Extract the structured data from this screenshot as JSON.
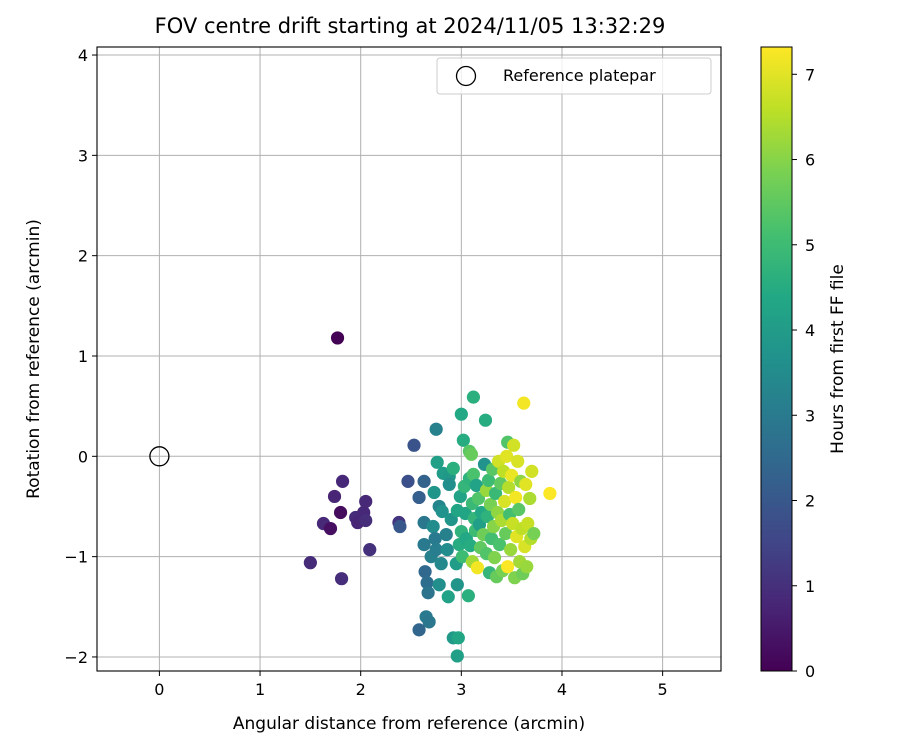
{
  "chart_data": {
    "type": "scatter",
    "title": "FOV centre drift starting at 2024/11/05 13:32:29",
    "xlabel": "Angular distance from reference (arcmin)",
    "ylabel": "Rotation from reference (arcmin)",
    "xlim": [
      -0.62,
      5.58
    ],
    "ylim": [
      -2.14,
      4.08
    ],
    "xticks": [
      0,
      1,
      2,
      3,
      4,
      5
    ],
    "yticks": [
      -2,
      -1,
      0,
      1,
      2,
      3,
      4
    ],
    "grid": true,
    "legend": {
      "label": "Reference platepar",
      "placement": "top-right"
    },
    "reference_point": {
      "x": 0,
      "y": 0
    },
    "colorbar": {
      "label": "Hours from first FF file",
      "colormap": "viridis",
      "range": [
        0,
        7.32
      ],
      "ticks": [
        0,
        1,
        2,
        3,
        4,
        5,
        6,
        7
      ]
    },
    "points": [
      {
        "x": 1.77,
        "y": 1.18,
        "h": 0.02
      },
      {
        "x": 1.5,
        "y": -1.06,
        "h": 0.9
      },
      {
        "x": 1.63,
        "y": -0.67,
        "h": 0.85
      },
      {
        "x": 1.7,
        "y": -0.72,
        "h": 0.3
      },
      {
        "x": 1.74,
        "y": -0.4,
        "h": 0.75
      },
      {
        "x": 1.8,
        "y": -0.56,
        "h": 0.2
      },
      {
        "x": 1.82,
        "y": -0.25,
        "h": 0.8
      },
      {
        "x": 1.81,
        "y": -1.22,
        "h": 0.95
      },
      {
        "x": 1.95,
        "y": -0.61,
        "h": 0.9
      },
      {
        "x": 1.97,
        "y": -0.66,
        "h": 0.75
      },
      {
        "x": 2.03,
        "y": -0.56,
        "h": 0.8
      },
      {
        "x": 2.05,
        "y": -0.45,
        "h": 0.85
      },
      {
        "x": 2.05,
        "y": -0.64,
        "h": 0.95
      },
      {
        "x": 2.09,
        "y": -0.93,
        "h": 1.0
      },
      {
        "x": 2.38,
        "y": -0.66,
        "h": 1.1
      },
      {
        "x": 2.39,
        "y": -0.7,
        "h": 2.0
      },
      {
        "x": 2.47,
        "y": -0.25,
        "h": 1.8
      },
      {
        "x": 2.53,
        "y": 0.11,
        "h": 1.9
      },
      {
        "x": 2.58,
        "y": -0.41,
        "h": 2.2
      },
      {
        "x": 2.58,
        "y": -1.73,
        "h": 2.4
      },
      {
        "x": 2.63,
        "y": -0.25,
        "h": 2.3
      },
      {
        "x": 2.63,
        "y": -0.66,
        "h": 2.9
      },
      {
        "x": 2.63,
        "y": -0.88,
        "h": 3.0
      },
      {
        "x": 2.64,
        "y": -1.15,
        "h": 2.5
      },
      {
        "x": 2.65,
        "y": -1.6,
        "h": 3.0
      },
      {
        "x": 2.66,
        "y": -1.26,
        "h": 2.6
      },
      {
        "x": 2.67,
        "y": -1.36,
        "h": 2.8
      },
      {
        "x": 2.68,
        "y": -1.65,
        "h": 2.9
      },
      {
        "x": 2.7,
        "y": -1.0,
        "h": 3.2
      },
      {
        "x": 2.72,
        "y": -0.7,
        "h": 3.5
      },
      {
        "x": 2.73,
        "y": -0.36,
        "h": 3.8
      },
      {
        "x": 2.74,
        "y": -0.82,
        "h": 3.0
      },
      {
        "x": 2.75,
        "y": 0.27,
        "h": 3.2
      },
      {
        "x": 2.75,
        "y": -0.93,
        "h": 3.1
      },
      {
        "x": 2.76,
        "y": -0.06,
        "h": 4.1
      },
      {
        "x": 2.78,
        "y": -0.5,
        "h": 3.3
      },
      {
        "x": 2.78,
        "y": -1.28,
        "h": 3.6
      },
      {
        "x": 2.8,
        "y": -1.07,
        "h": 3.4
      },
      {
        "x": 2.81,
        "y": -0.55,
        "h": 3.7
      },
      {
        "x": 2.82,
        "y": -0.17,
        "h": 4.0
      },
      {
        "x": 2.85,
        "y": -0.78,
        "h": 3.2
      },
      {
        "x": 2.86,
        "y": -0.93,
        "h": 3.5
      },
      {
        "x": 2.87,
        "y": -1.4,
        "h": 4.2
      },
      {
        "x": 2.88,
        "y": -0.2,
        "h": 3.9
      },
      {
        "x": 2.88,
        "y": -0.28,
        "h": 3.6
      },
      {
        "x": 2.9,
        "y": -0.63,
        "h": 3.8
      },
      {
        "x": 2.92,
        "y": -0.12,
        "h": 4.6
      },
      {
        "x": 2.92,
        "y": -1.81,
        "h": 3.9
      },
      {
        "x": 2.95,
        "y": -1.07,
        "h": 4.0
      },
      {
        "x": 2.96,
        "y": -0.54,
        "h": 4.3
      },
      {
        "x": 2.96,
        "y": -1.28,
        "h": 3.8
      },
      {
        "x": 2.96,
        "y": -1.99,
        "h": 4.1
      },
      {
        "x": 2.97,
        "y": -1.81,
        "h": 4.3
      },
      {
        "x": 2.98,
        "y": -0.88,
        "h": 4.5
      },
      {
        "x": 2.99,
        "y": -0.4,
        "h": 4.2
      },
      {
        "x": 3.0,
        "y": 0.42,
        "h": 4.4
      },
      {
        "x": 3.0,
        "y": -0.75,
        "h": 4.7
      },
      {
        "x": 3.01,
        "y": -1.0,
        "h": 5.0
      },
      {
        "x": 3.02,
        "y": 0.16,
        "h": 4.5
      },
      {
        "x": 3.03,
        "y": -0.3,
        "h": 4.8
      },
      {
        "x": 3.04,
        "y": -0.57,
        "h": 4.3
      },
      {
        "x": 3.05,
        "y": -0.82,
        "h": 4.4
      },
      {
        "x": 3.07,
        "y": -1.39,
        "h": 4.6
      },
      {
        "x": 3.08,
        "y": 0.05,
        "h": 5.4
      },
      {
        "x": 3.08,
        "y": -0.22,
        "h": 4.7
      },
      {
        "x": 3.09,
        "y": -0.89,
        "h": 4.5
      },
      {
        "x": 3.1,
        "y": 0.02,
        "h": 5.6
      },
      {
        "x": 3.11,
        "y": -0.47,
        "h": 4.9
      },
      {
        "x": 3.11,
        "y": -1.05,
        "h": 6.3
      },
      {
        "x": 3.12,
        "y": 0.59,
        "h": 4.6
      },
      {
        "x": 3.12,
        "y": -0.18,
        "h": 5.2
      },
      {
        "x": 3.13,
        "y": -0.62,
        "h": 4.8
      },
      {
        "x": 3.14,
        "y": -0.74,
        "h": 5.0
      },
      {
        "x": 3.15,
        "y": -0.29,
        "h": 4.2
      },
      {
        "x": 3.16,
        "y": -1.11,
        "h": 7.2
      },
      {
        "x": 3.17,
        "y": -0.42,
        "h": 5.3
      },
      {
        "x": 3.18,
        "y": -0.68,
        "h": 4.1
      },
      {
        "x": 3.19,
        "y": -0.91,
        "h": 5.5
      },
      {
        "x": 3.2,
        "y": -0.56,
        "h": 4.4
      },
      {
        "x": 3.22,
        "y": -0.78,
        "h": 5.7
      },
      {
        "x": 3.23,
        "y": -0.08,
        "h": 3.7
      },
      {
        "x": 3.24,
        "y": 0.36,
        "h": 4.5
      },
      {
        "x": 3.25,
        "y": -0.34,
        "h": 6.2
      },
      {
        "x": 3.25,
        "y": -0.97,
        "h": 5.3
      },
      {
        "x": 3.26,
        "y": -0.6,
        "h": 4.7
      },
      {
        "x": 3.27,
        "y": -0.24,
        "h": 5.0
      },
      {
        "x": 3.28,
        "y": -1.16,
        "h": 4.8
      },
      {
        "x": 3.29,
        "y": -0.48,
        "h": 5.8
      },
      {
        "x": 3.3,
        "y": -0.82,
        "h": 5.1
      },
      {
        "x": 3.31,
        "y": -0.13,
        "h": 5.4
      },
      {
        "x": 3.32,
        "y": -0.7,
        "h": 6.0
      },
      {
        "x": 3.33,
        "y": -1.01,
        "h": 5.9
      },
      {
        "x": 3.34,
        "y": -0.37,
        "h": 4.9
      },
      {
        "x": 3.35,
        "y": -1.2,
        "h": 5.6
      },
      {
        "x": 3.36,
        "y": -0.56,
        "h": 6.1
      },
      {
        "x": 3.37,
        "y": -0.05,
        "h": 6.8
      },
      {
        "x": 3.38,
        "y": -0.88,
        "h": 5.2
      },
      {
        "x": 3.39,
        "y": -0.27,
        "h": 5.5
      },
      {
        "x": 3.4,
        "y": -0.64,
        "h": 6.4
      },
      {
        "x": 3.41,
        "y": -1.14,
        "h": 5.8
      },
      {
        "x": 3.42,
        "y": -0.15,
        "h": 6.6
      },
      {
        "x": 3.43,
        "y": -0.45,
        "h": 6.9
      },
      {
        "x": 3.44,
        "y": -0.77,
        "h": 5.6
      },
      {
        "x": 3.45,
        "y": 0.0,
        "h": 7.0
      },
      {
        "x": 3.46,
        "y": -1.1,
        "h": 7.3
      },
      {
        "x": 3.46,
        "y": 0.14,
        "h": 5.3
      },
      {
        "x": 3.47,
        "y": -0.31,
        "h": 6.5
      },
      {
        "x": 3.48,
        "y": -0.58,
        "h": 5.1
      },
      {
        "x": 3.49,
        "y": -0.93,
        "h": 6.2
      },
      {
        "x": 3.5,
        "y": -0.19,
        "h": 7.1
      },
      {
        "x": 3.51,
        "y": -0.67,
        "h": 6.7
      },
      {
        "x": 3.52,
        "y": 0.11,
        "h": 6.8
      },
      {
        "x": 3.53,
        "y": -1.21,
        "h": 5.9
      },
      {
        "x": 3.54,
        "y": -0.41,
        "h": 7.2
      },
      {
        "x": 3.55,
        "y": -0.8,
        "h": 7.0
      },
      {
        "x": 3.56,
        "y": -0.05,
        "h": 6.9
      },
      {
        "x": 3.57,
        "y": -0.53,
        "h": 5.4
      },
      {
        "x": 3.58,
        "y": -1.05,
        "h": 6.3
      },
      {
        "x": 3.59,
        "y": -0.25,
        "h": 6.1
      },
      {
        "x": 3.6,
        "y": -0.72,
        "h": 6.6
      },
      {
        "x": 3.61,
        "y": -1.17,
        "h": 5.7
      },
      {
        "x": 3.62,
        "y": 0.53,
        "h": 7.2
      },
      {
        "x": 3.63,
        "y": -0.9,
        "h": 6.9
      },
      {
        "x": 3.64,
        "y": -0.28,
        "h": 7.0
      },
      {
        "x": 3.65,
        "y": -1.1,
        "h": 6.2
      },
      {
        "x": 3.66,
        "y": -0.67,
        "h": 6.7
      },
      {
        "x": 3.68,
        "y": -0.42,
        "h": 6.4
      },
      {
        "x": 3.69,
        "y": -0.82,
        "h": 6.5
      },
      {
        "x": 3.7,
        "y": -0.15,
        "h": 6.8
      },
      {
        "x": 3.72,
        "y": -0.77,
        "h": 5.8
      },
      {
        "x": 3.88,
        "y": -0.37,
        "h": 7.3
      }
    ]
  }
}
